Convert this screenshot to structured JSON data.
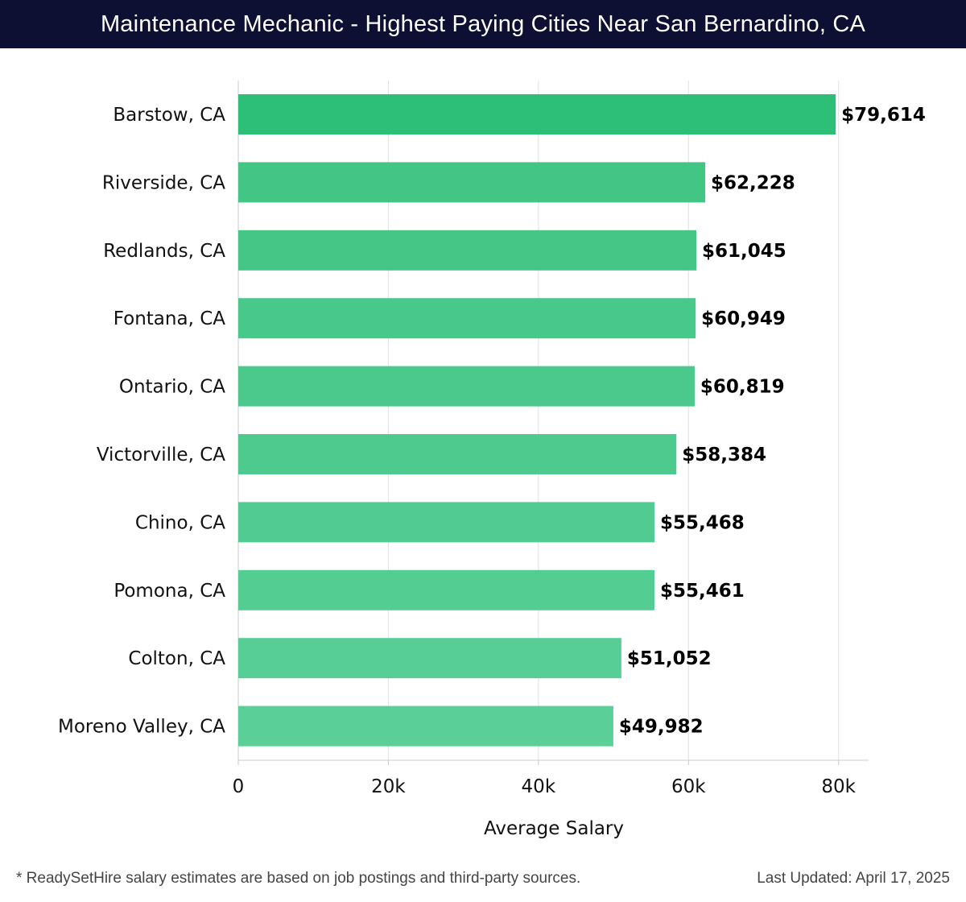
{
  "header": {
    "title": "Maintenance Mechanic - Highest Paying Cities Near San Bernardino, CA"
  },
  "chart_data": {
    "type": "bar",
    "orientation": "horizontal",
    "categories": [
      "Barstow, CA",
      "Riverside, CA",
      "Redlands, CA",
      "Fontana, CA",
      "Ontario, CA",
      "Victorville, CA",
      "Chino, CA",
      "Pomona, CA",
      "Colton, CA",
      "Moreno Valley, CA"
    ],
    "values": [
      79614,
      62228,
      61045,
      60949,
      60819,
      58384,
      55468,
      55461,
      51052,
      49982
    ],
    "value_labels": [
      "$79,614",
      "$62,228",
      "$61,045",
      "$60,949",
      "$60,819",
      "$58,384",
      "$55,468",
      "$55,461",
      "$51,052",
      "$49,982"
    ],
    "xlabel": "Average Salary",
    "ylabel": "",
    "xlim": [
      0,
      84000
    ],
    "xticks": [
      0,
      20000,
      40000,
      60000,
      80000
    ],
    "xtick_labels": [
      "0",
      "20k",
      "40k",
      "60k",
      "80k"
    ],
    "grid": "vertical",
    "colors": {
      "top_bar": "#2dbe78",
      "bars_gradient": [
        "#42c585",
        "#5acf98"
      ],
      "grid": "#e2e2e2",
      "axis": "#cccccc"
    }
  },
  "footer": {
    "note": "* ReadySetHire salary estimates are based on job postings and third-party sources.",
    "updated": "Last Updated: April 17, 2025"
  }
}
